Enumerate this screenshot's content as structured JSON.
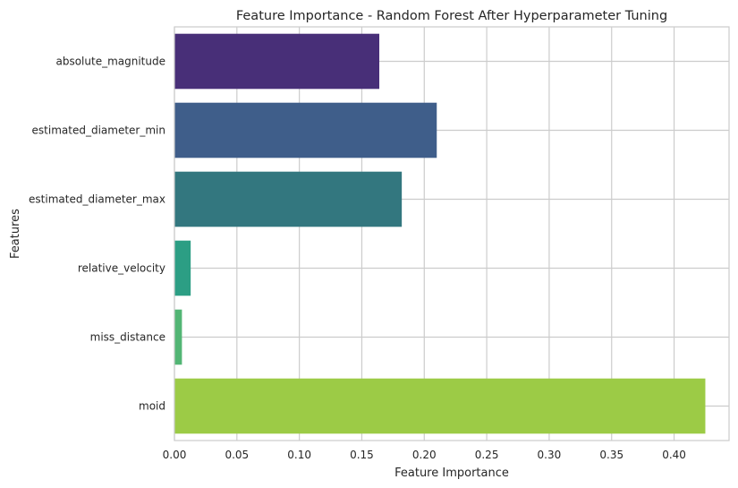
{
  "chart_data": {
    "type": "bar",
    "orientation": "horizontal",
    "title": "Feature Importance - Random Forest After Hyperparameter Tuning",
    "xlabel": "Feature Importance",
    "ylabel": "Features",
    "categories": [
      "absolute_magnitude",
      "estimated_diameter_min",
      "estimated_diameter_max",
      "relative_velocity",
      "miss_distance",
      "moid"
    ],
    "values": [
      0.164,
      0.21,
      0.182,
      0.013,
      0.006,
      0.425
    ],
    "colors": [
      "#482f78",
      "#3f5e8a",
      "#33777f",
      "#2c9e84",
      "#52b574",
      "#9ccb46"
    ],
    "xlim": [
      0,
      0.444
    ],
    "xticks": [
      0.0,
      0.05,
      0.1,
      0.15,
      0.2,
      0.25,
      0.3,
      0.35,
      0.4
    ],
    "xtick_labels": [
      "0.00",
      "0.05",
      "0.10",
      "0.15",
      "0.20",
      "0.25",
      "0.30",
      "0.35",
      "0.40"
    ],
    "grid": "x and y",
    "style": "whitegrid"
  }
}
